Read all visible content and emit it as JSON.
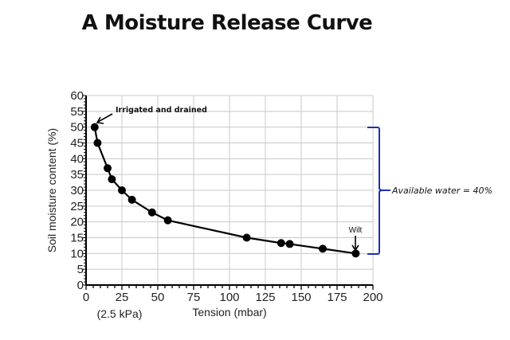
{
  "title": "A Moisture Release Curve",
  "chart_data": {
    "type": "line",
    "title": "A Moisture Release Curve",
    "xlabel": "Tension (mbar)",
    "ylabel": "Soil moisture content (%)",
    "xlim": [
      0,
      200
    ],
    "ylim": [
      0,
      60
    ],
    "x_ticks": [
      0,
      25,
      50,
      75,
      100,
      125,
      150,
      175,
      200
    ],
    "y_ticks": [
      0,
      5,
      10,
      15,
      20,
      25,
      30,
      35,
      40,
      45,
      50,
      55,
      60
    ],
    "grid": true,
    "legend": null,
    "series": [
      {
        "name": "Moisture release curve",
        "x": [
          6,
          8,
          15,
          18,
          25,
          32,
          46,
          57,
          112,
          136,
          142,
          165,
          188
        ],
        "y": [
          50,
          45,
          37,
          33.5,
          30,
          27,
          23,
          20.5,
          15,
          13.3,
          13,
          11.5,
          10
        ]
      }
    ],
    "annotations": [
      {
        "text": "Irrigated and drained",
        "x": 6,
        "y": 50
      },
      {
        "text": "Wilt",
        "x": 188,
        "y": 10
      },
      {
        "text": "Available water = 40%",
        "range_y": [
          10,
          50
        ]
      },
      {
        "text": "(2.5 kPa)",
        "x": 25
      }
    ]
  },
  "labels": {
    "xlabel": "Tension (mbar)",
    "ylabel": "Soil moisture content (%)",
    "x_sub": "(2.5 kPa)",
    "irrigated": "Irrigated and drained",
    "wilt": "Wilt",
    "available": "Available water = 40%"
  },
  "colors": {
    "line": "#000000",
    "grid": "#c8c8c8",
    "bracket": "#1f2fb0"
  }
}
